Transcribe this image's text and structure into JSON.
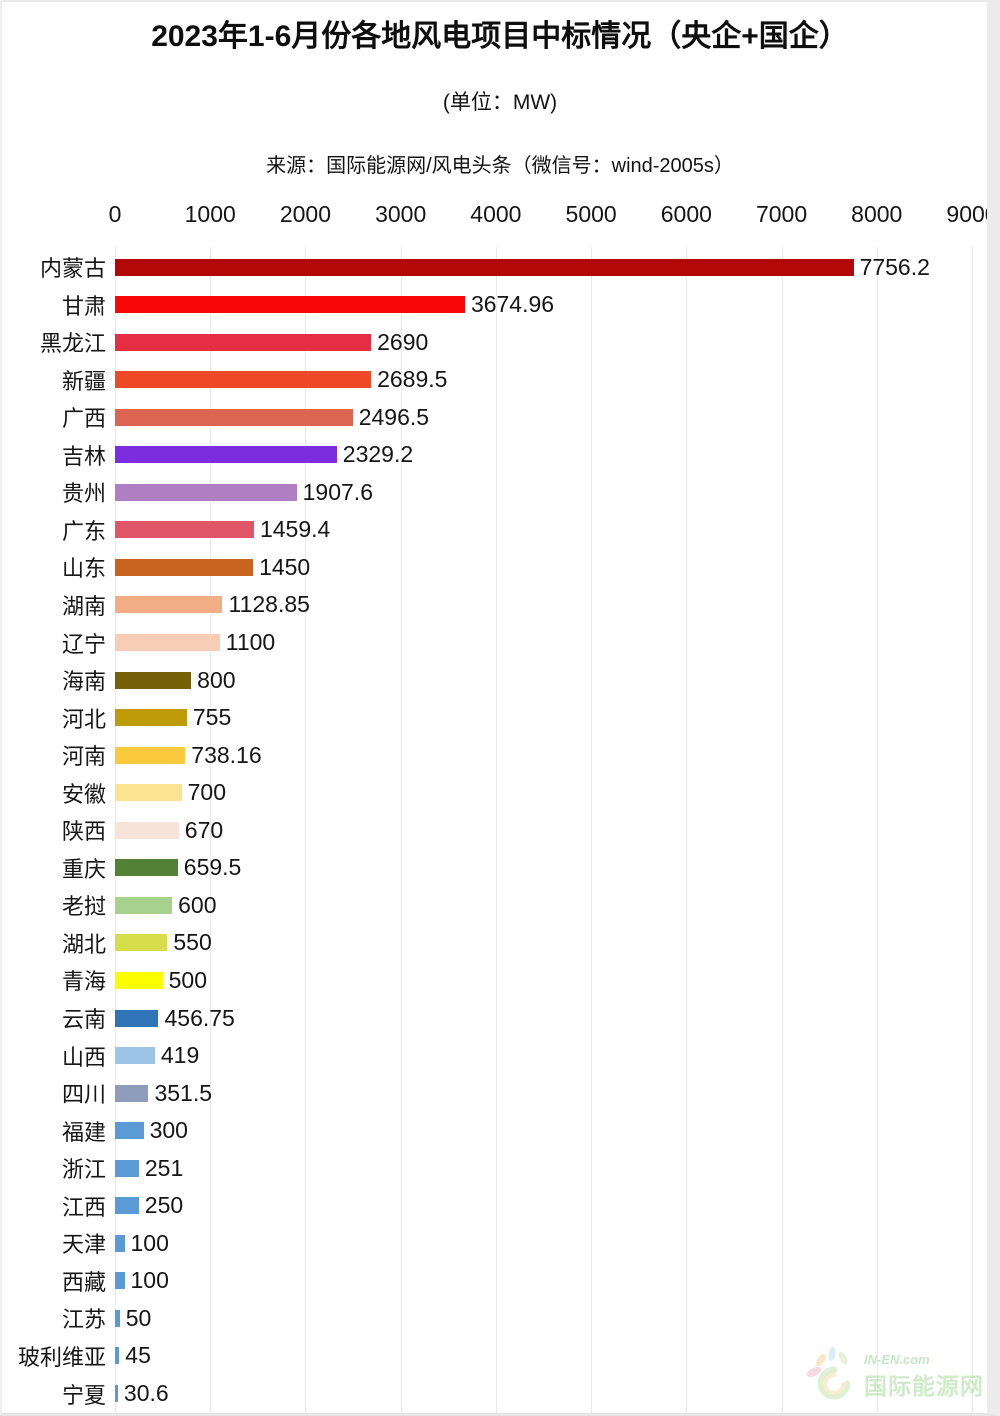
{
  "page": {
    "title": "2023年1-6月份各地风电项目中标情况（央企+国企）",
    "subtitle": "(单位：MW)",
    "source": "来源：国际能源网/风电头条（微信号：wind-2005s）"
  },
  "watermark": {
    "site": "IN-EN.com",
    "name": "国际能源网"
  },
  "chart_data": {
    "type": "bar",
    "orientation": "horizontal",
    "title": "2023年1-6月份各地风电项目中标情况（央企+国企）",
    "unit": "MW",
    "xlim": [
      0,
      9000
    ],
    "x_ticks": [
      0,
      1000,
      2000,
      3000,
      4000,
      5000,
      6000,
      7000,
      8000,
      9000
    ],
    "grid": true,
    "value_labels": true,
    "legend": false,
    "categories": [
      "内蒙古",
      "甘肃",
      "黑龙江",
      "新疆",
      "广西",
      "吉林",
      "贵州",
      "广东",
      "山东",
      "湖南",
      "辽宁",
      "海南",
      "河北",
      "河南",
      "安徽",
      "陕西",
      "重庆",
      "老挝",
      "湖北",
      "青海",
      "云南",
      "山西",
      "四川",
      "福建",
      "浙江",
      "江西",
      "天津",
      "西藏",
      "江苏",
      "玻利维亚",
      "宁夏"
    ],
    "values": [
      7756.2,
      3674.96,
      2690,
      2689.5,
      2496.5,
      2329.2,
      1907.6,
      1459.4,
      1450,
      1128.85,
      1100,
      800,
      755,
      738.16,
      700,
      670,
      659.5,
      600,
      550,
      500,
      456.75,
      419,
      351.5,
      300,
      251,
      250,
      100,
      100,
      50,
      45,
      30.6
    ],
    "bar_colors": [
      "#b20808",
      "#f90606",
      "#e52e43",
      "#ef4a28",
      "#dc6450",
      "#7c2de0",
      "#b07ec2",
      "#e05568",
      "#c8641f",
      "#f1ad84",
      "#f7cdb5",
      "#776108",
      "#bd9b0b",
      "#fac93e",
      "#fbe391",
      "#f8e3da",
      "#538135",
      "#a9d18e",
      "#d6dd4b",
      "#fdfd02",
      "#2e74b6",
      "#9dc3e6",
      "#8e9dbb",
      "#5b9bd5",
      "#5b9bd5",
      "#5b9bd5",
      "#5b9bd5",
      "#5b9bd5",
      "#5b9bd5",
      "#5b9bd5",
      "#5b9bd5"
    ]
  }
}
